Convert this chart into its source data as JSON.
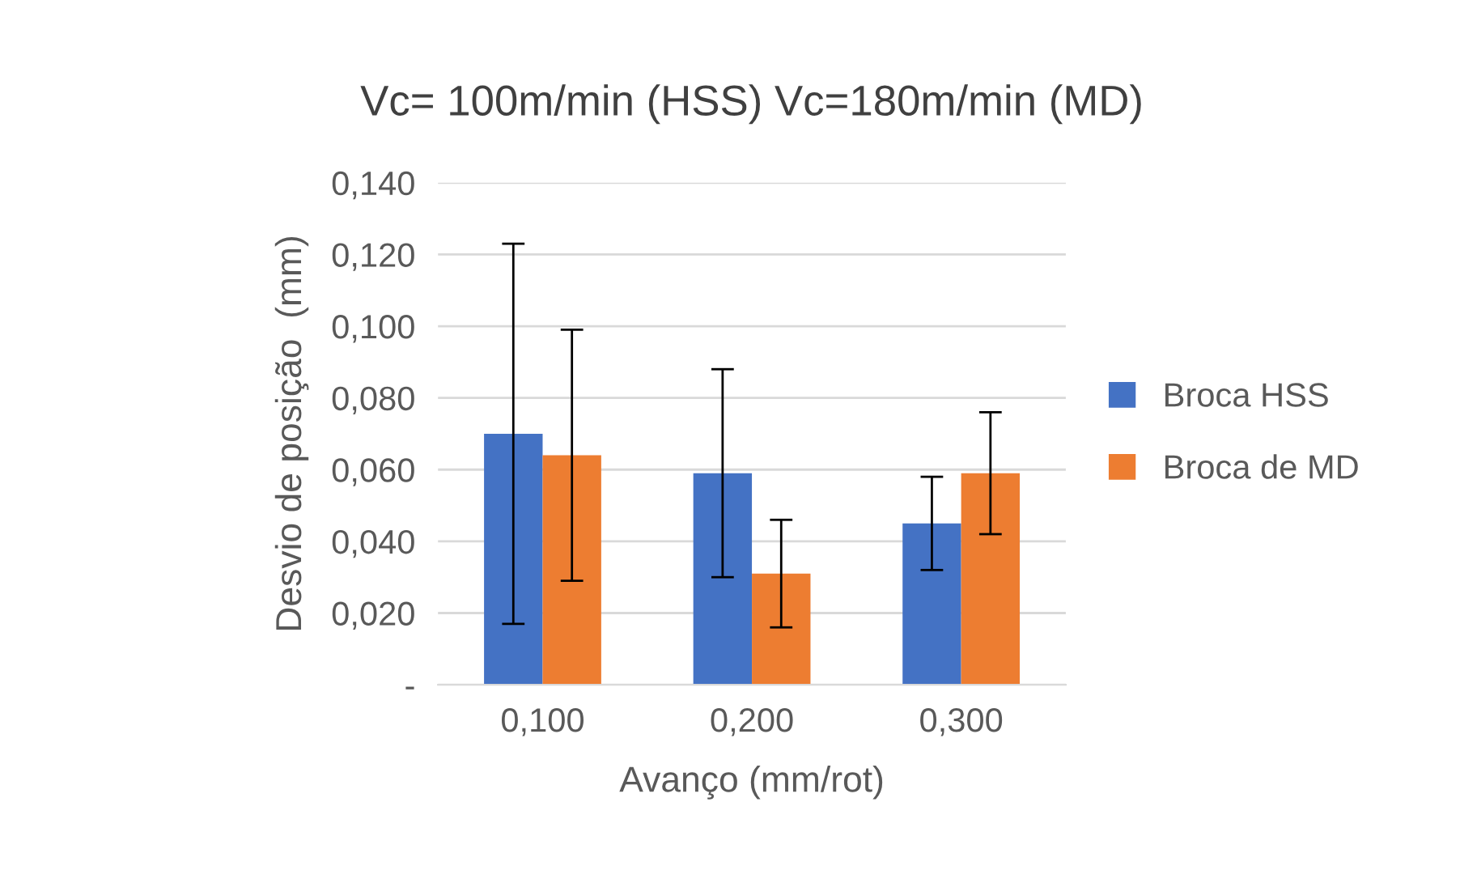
{
  "chart_data": {
    "type": "bar",
    "title": "Vc= 100m/min (HSS) Vc=180m/min (MD)",
    "xlabel": "Avanço (mm/rot)",
    "ylabel": "Desvio de posição  (mm)",
    "categories": [
      "0,100",
      "0,200",
      "0,300"
    ],
    "series": [
      {
        "name": "Broca HSS",
        "color": "#4472c4",
        "values": [
          0.07,
          0.059,
          0.045
        ],
        "errors": [
          0.053,
          0.029,
          0.013
        ]
      },
      {
        "name": "Broca de MD",
        "color": "#ed7d31",
        "values": [
          0.064,
          0.031,
          0.059
        ],
        "errors": [
          0.035,
          0.015,
          0.017
        ]
      }
    ],
    "ylim": [
      0,
      0.14
    ],
    "yticks": [
      {
        "value": 0,
        "label": "-"
      },
      {
        "value": 0.02,
        "label": "0,020"
      },
      {
        "value": 0.04,
        "label": "0,040"
      },
      {
        "value": 0.06,
        "label": "0,060"
      },
      {
        "value": 0.08,
        "label": "0,080"
      },
      {
        "value": 0.1,
        "label": "0,100"
      },
      {
        "value": 0.12,
        "label": "0,120"
      },
      {
        "value": 0.14,
        "label": "0,140"
      }
    ],
    "grid": "y",
    "legend": "right"
  }
}
